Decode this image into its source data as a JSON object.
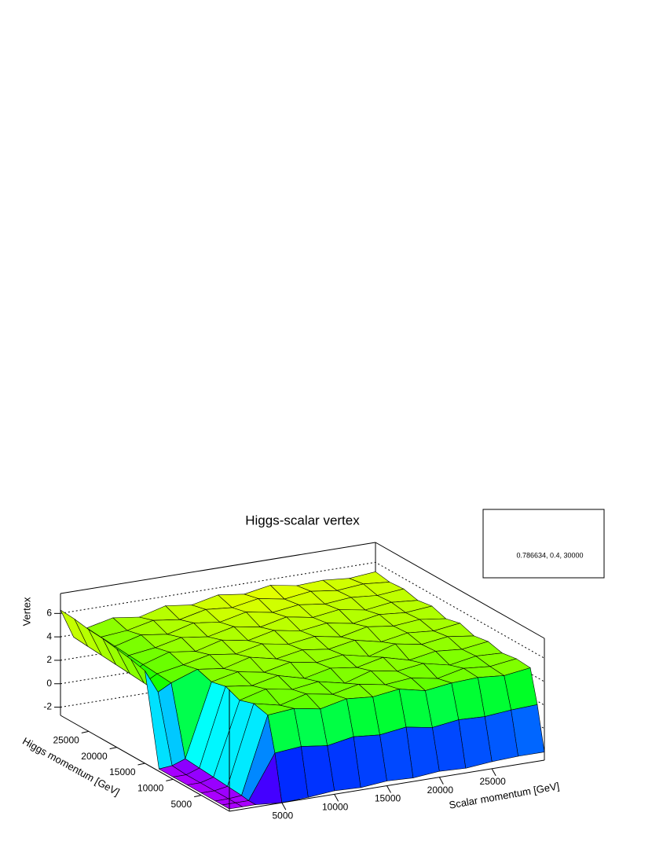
{
  "chart_data": {
    "type": "surface3d",
    "title": "Higgs-scalar vertex",
    "x_label": "Scalar momentum [GeV]",
    "y_label": "Higgs momentum [GeV]",
    "z_label": "Vertex",
    "stats_text": "0.786634, 0.4, 30000",
    "xlim": [
      0,
      30000
    ],
    "ylim": [
      0,
      30000
    ],
    "zlim": [
      -2.7,
      7.7
    ],
    "xticks": [
      5000,
      10000,
      15000,
      20000,
      25000
    ],
    "yticks": [
      5000,
      10000,
      15000,
      20000,
      25000
    ],
    "zticks": [
      -2,
      0,
      2,
      4,
      6
    ],
    "grid": true,
    "x": [
      0,
      1250,
      2500,
      5000,
      7500,
      10000,
      12500,
      15000,
      17500,
      20000,
      22500,
      25000,
      27500,
      30000
    ],
    "y": [
      0,
      1250,
      2500,
      5000,
      7500,
      10000,
      12500,
      15000,
      17500,
      20000,
      22500,
      25000,
      27500,
      30000
    ],
    "z": [
      [
        -2.5,
        -2.5,
        -2.5,
        -2.7,
        -2.6,
        -2.4,
        -2.5,
        -2.3,
        -2.4,
        -2.2,
        -2.3,
        -2.1,
        -2.0,
        -2.0
      ],
      [
        -2.5,
        -2.5,
        -2.5,
        1.2,
        1.4,
        1.1,
        1.5,
        1.3,
        1.6,
        1.2,
        1.5,
        1.4,
        1.6,
        1.7
      ],
      [
        -2.5,
        -2.5,
        -2.4,
        4.1,
        4.3,
        3.9,
        4.4,
        4.2,
        4.5,
        4.0,
        4.3,
        4.4,
        4.2,
        4.5
      ],
      [
        -2.5,
        -2.5,
        -2.3,
        4.4,
        3.9,
        4.5,
        4.1,
        4.6,
        4.2,
        4.4,
        4.0,
        4.5,
        4.3,
        4.6
      ],
      [
        -2.5,
        -2.5,
        -2.2,
        4.0,
        4.6,
        4.2,
        4.5,
        4.0,
        4.7,
        4.3,
        4.6,
        4.1,
        4.5,
        4.4
      ],
      [
        -2.5,
        -2.5,
        -2.1,
        4.5,
        4.2,
        4.7,
        4.1,
        4.6,
        4.3,
        4.8,
        4.2,
        4.6,
        4.4,
        4.7
      ],
      [
        -2.5,
        -2.4,
        -2.0,
        4.2,
        4.7,
        4.3,
        4.8,
        4.4,
        4.7,
        4.2,
        4.9,
        4.5,
        4.8,
        4.5
      ],
      [
        5.2,
        3.2,
        3.8,
        4.6,
        4.3,
        4.9,
        4.4,
        4.8,
        4.5,
        4.9,
        4.4,
        4.8,
        4.6,
        4.9
      ],
      [
        5.5,
        3.3,
        3.9,
        4.3,
        4.8,
        4.5,
        5.0,
        4.6,
        4.9,
        4.5,
        5.0,
        4.7,
        4.9,
        4.6
      ],
      [
        5.7,
        3.4,
        4.0,
        4.7,
        4.4,
        5.0,
        4.6,
        5.1,
        4.7,
        5.0,
        4.6,
        5.0,
        4.8,
        5.0
      ],
      [
        5.9,
        3.5,
        4.1,
        4.4,
        4.9,
        4.6,
        5.1,
        4.7,
        5.2,
        4.8,
        5.1,
        4.7,
        5.0,
        4.8
      ],
      [
        6.0,
        3.6,
        4.2,
        4.8,
        4.5,
        5.1,
        4.8,
        5.3,
        4.9,
        5.2,
        4.9,
        5.1,
        4.9,
        5.1
      ],
      [
        6.2,
        3.7,
        4.3,
        4.5,
        5.0,
        4.7,
        5.2,
        5.0,
        5.4,
        5.0,
        5.3,
        5.0,
        5.2,
        5.0
      ],
      [
        6.3,
        3.8,
        4.4,
        4.9,
        4.6,
        5.2,
        4.9,
        5.4,
        5.1,
        5.5,
        5.1,
        5.2,
        5.0,
        5.2
      ]
    ]
  }
}
